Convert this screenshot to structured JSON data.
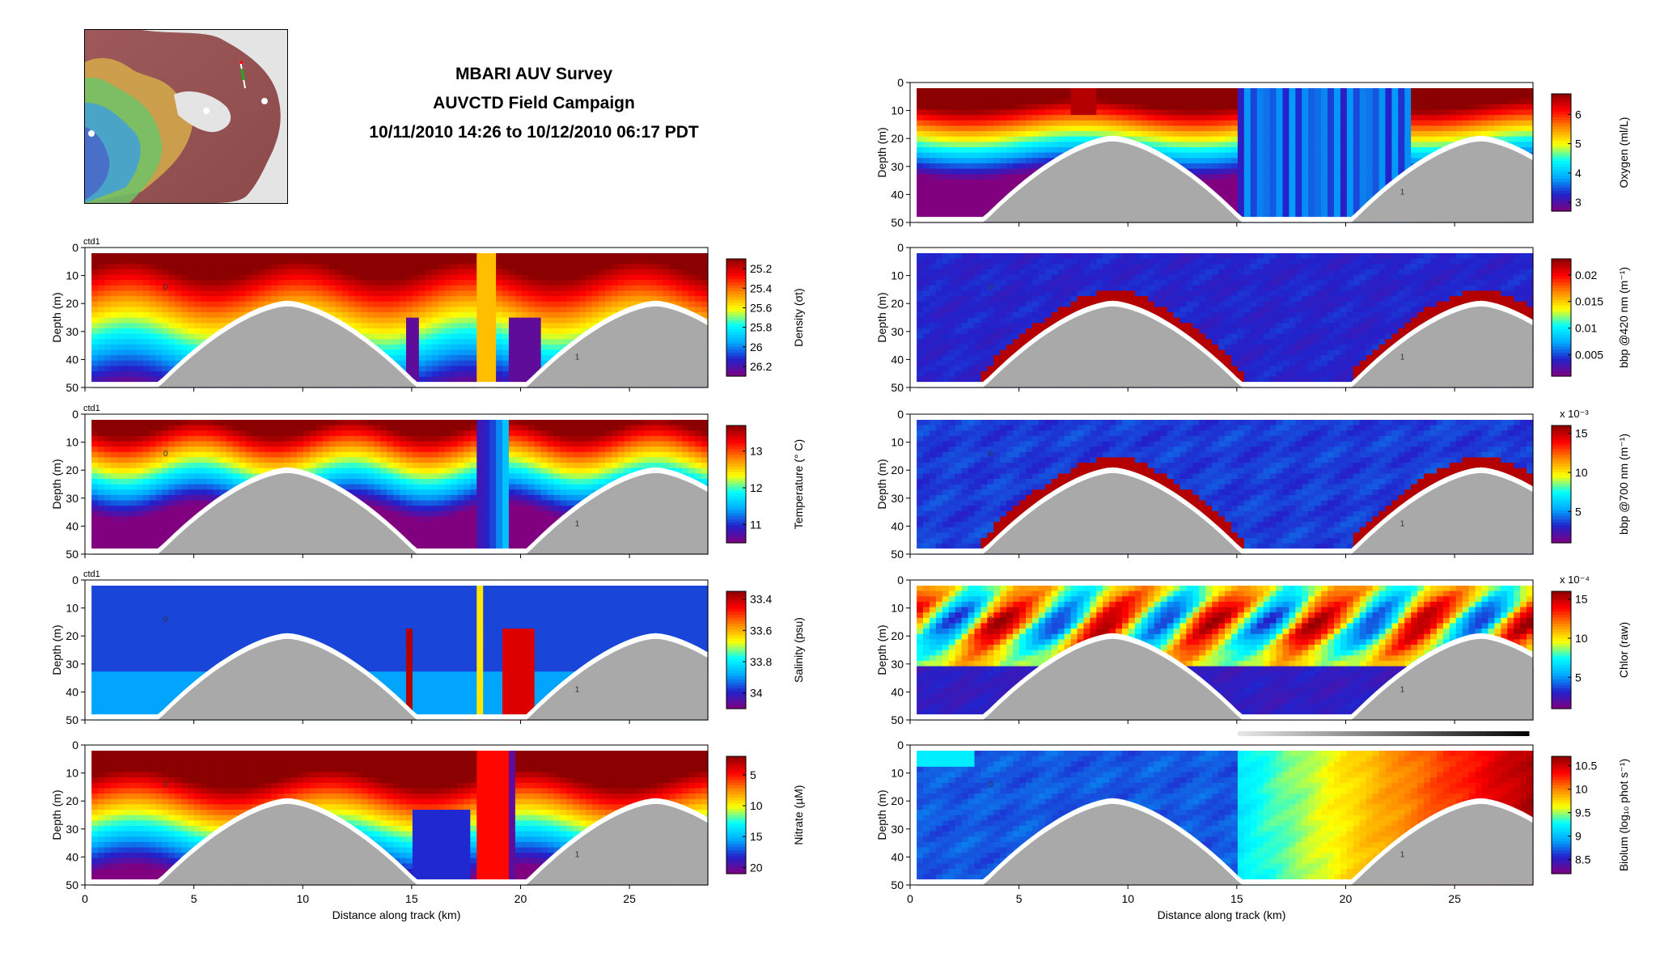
{
  "header": {
    "title_line1": "MBARI AUV Survey",
    "title_line2": "AUVCTD Field Campaign",
    "title_line3": "10/11/2010 14:26 to 10/12/2010 06:17 PDT"
  },
  "colors": {
    "seafloor": "#a9a9a9",
    "background": "#ffffff",
    "colormap_jet": [
      "#800080",
      "#2222cc",
      "#00aaff",
      "#00ffff",
      "#ffff00",
      "#ff8800",
      "#ff0000",
      "#8b0000"
    ]
  },
  "chart_data": [
    {
      "type": "heatmap",
      "id": "density",
      "panel_tag": "ctd1",
      "ylabel": "Depth (m)",
      "xlabel": "",
      "xlim": [
        0,
        28.6
      ],
      "ylim": [
        50,
        0
      ],
      "xticks": [
        "0",
        "5",
        "10",
        "15",
        "20",
        "25"
      ],
      "yticks": [
        "0",
        "10",
        "20",
        "30",
        "40",
        "50"
      ],
      "colorbar_label": "Density (σt)",
      "colorbar_ticks": [
        "25.2",
        "25.4",
        "25.6",
        "25.8",
        "26",
        "26.2"
      ],
      "colorbar_range": [
        25.1,
        26.3
      ],
      "colorbar_reversed": true,
      "annotations": [
        "0",
        "1"
      ]
    },
    {
      "type": "heatmap",
      "id": "temperature",
      "panel_tag": "ctd1",
      "ylabel": "Depth (m)",
      "xlabel": "",
      "xlim": [
        0,
        28.6
      ],
      "ylim": [
        50,
        0
      ],
      "xticks": [
        "0",
        "5",
        "10",
        "15",
        "20",
        "25"
      ],
      "yticks": [
        "0",
        "10",
        "20",
        "30",
        "40",
        "50"
      ],
      "colorbar_label": "Temperature (° C)",
      "colorbar_ticks": [
        "11",
        "12",
        "13"
      ],
      "colorbar_range": [
        10.5,
        13.7
      ],
      "colorbar_reversed": false,
      "annotations": [
        "0",
        "1"
      ]
    },
    {
      "type": "heatmap",
      "id": "salinity",
      "panel_tag": "ctd1",
      "ylabel": "Depth (m)",
      "xlabel": "",
      "xlim": [
        0,
        28.6
      ],
      "ylim": [
        50,
        0
      ],
      "xticks": [
        "0",
        "5",
        "10",
        "15",
        "20",
        "25"
      ],
      "yticks": [
        "0",
        "10",
        "20",
        "30",
        "40",
        "50"
      ],
      "colorbar_label": "Salinity (psu)",
      "colorbar_ticks": [
        "33.4",
        "33.6",
        "33.8",
        "34"
      ],
      "colorbar_range": [
        33.35,
        34.1
      ],
      "colorbar_reversed": true,
      "annotations": [
        "0",
        "1"
      ]
    },
    {
      "type": "heatmap",
      "id": "nitrate",
      "ylabel": "Depth (m)",
      "xlabel": "Distance along track (km)",
      "xlim": [
        0,
        28.6
      ],
      "ylim": [
        50,
        0
      ],
      "xticks": [
        "0",
        "5",
        "10",
        "15",
        "20",
        "25"
      ],
      "yticks": [
        "0",
        "10",
        "20",
        "30",
        "40",
        "50"
      ],
      "colorbar_label": "Nitrate (µM)",
      "colorbar_ticks": [
        "5",
        "10",
        "15",
        "20"
      ],
      "colorbar_range": [
        2,
        21
      ],
      "colorbar_reversed": true,
      "annotations": [
        "0",
        "1"
      ]
    },
    {
      "type": "heatmap",
      "id": "oxygen",
      "ylabel": "Depth (m)",
      "xlabel": "",
      "xlim": [
        0,
        28.6
      ],
      "ylim": [
        50,
        0
      ],
      "xticks": [
        "0",
        "5",
        "10",
        "15",
        "20",
        "25"
      ],
      "yticks": [
        "0",
        "10",
        "20",
        "30",
        "40",
        "50"
      ],
      "colorbar_label": "Oxygen (ml/L)",
      "colorbar_ticks": [
        "3",
        "4",
        "5",
        "6"
      ],
      "colorbar_range": [
        2.7,
        6.7
      ],
      "colorbar_reversed": false,
      "annotations": [
        "1"
      ]
    },
    {
      "type": "heatmap",
      "id": "bbp420",
      "ylabel": "Depth (m)",
      "xlabel": "",
      "xlim": [
        0,
        28.6
      ],
      "ylim": [
        50,
        0
      ],
      "xticks": [
        "0",
        "5",
        "10",
        "15",
        "20",
        "25"
      ],
      "yticks": [
        "0",
        "10",
        "20",
        "30",
        "40",
        "50"
      ],
      "colorbar_label": "bbp @420 nm (m⁻¹)",
      "colorbar_ticks": [
        "0.005",
        "0.01",
        "0.015",
        "0.02"
      ],
      "colorbar_range": [
        0.001,
        0.023
      ],
      "colorbar_reversed": false,
      "annotations": [
        "0",
        "1"
      ]
    },
    {
      "type": "heatmap",
      "id": "bbp700",
      "ylabel": "Depth (m)",
      "xlabel": "",
      "xlim": [
        0,
        28.6
      ],
      "ylim": [
        50,
        0
      ],
      "xticks": [
        "0",
        "5",
        "10",
        "15",
        "20",
        "25"
      ],
      "yticks": [
        "0",
        "10",
        "20",
        "30",
        "40",
        "50"
      ],
      "colorbar_label": "bbp @700 nm (m⁻¹)",
      "colorbar_exponent": "x 10⁻³",
      "colorbar_ticks": [
        "5",
        "10",
        "15"
      ],
      "colorbar_range": [
        1,
        16
      ],
      "colorbar_reversed": false,
      "annotations": [
        "0",
        "1"
      ]
    },
    {
      "type": "heatmap",
      "id": "chlor",
      "ylabel": "Depth (m)",
      "xlabel": "",
      "xlim": [
        0,
        28.6
      ],
      "ylim": [
        50,
        0
      ],
      "xticks": [
        "0",
        "5",
        "10",
        "15",
        "20",
        "25"
      ],
      "yticks": [
        "0",
        "10",
        "20",
        "30",
        "40",
        "50"
      ],
      "colorbar_label": "Chlor (raw)",
      "colorbar_exponent": "x 10⁻⁴",
      "colorbar_ticks": [
        "5",
        "10",
        "15"
      ],
      "colorbar_range": [
        1,
        16
      ],
      "colorbar_reversed": false,
      "annotations": [
        "0",
        "1"
      ]
    },
    {
      "type": "heatmap",
      "id": "biolum",
      "ylabel": "Depth (m)",
      "xlabel": "Distance along track (km)",
      "xlim": [
        0,
        28.6
      ],
      "ylim": [
        50,
        0
      ],
      "xticks": [
        "0",
        "5",
        "10",
        "15",
        "20",
        "25"
      ],
      "yticks": [
        "0",
        "10",
        "20",
        "30",
        "40",
        "50"
      ],
      "colorbar_label": "Biolum (log₁₀ phot s⁻¹)",
      "colorbar_ticks": [
        "8.5",
        "9",
        "9.5",
        "10",
        "10.5"
      ],
      "colorbar_range": [
        8.2,
        10.7
      ],
      "colorbar_reversed": false,
      "annotations": [
        "0",
        "1"
      ]
    }
  ]
}
